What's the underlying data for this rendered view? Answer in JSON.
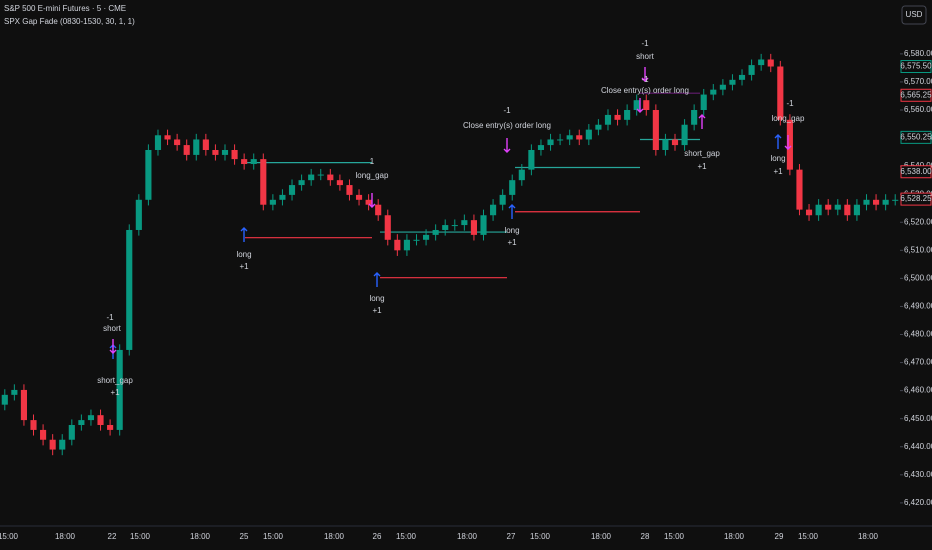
{
  "chart_data": {
    "type": "candlestick",
    "title": "S&P 500 E-mini Futures · 5 · CME",
    "subtitle": "SPX Gap Fade (0830-1530, 30, 1, 1)",
    "currency": "USD",
    "up_color": "#089981",
    "down_color": "#f23645",
    "open": [
      6455,
      6458.5,
      6460.25,
      6449.5,
      6446,
      6442.5,
      6439,
      6442.5,
      6447.75,
      6449.5,
      6451.25,
      6447.75,
      6446,
      6474.5,
      6517.25,
      6528,
      6545.75,
      6551,
      6549.5,
      6547.5,
      6544,
      6549.5,
      6545.75,
      6544,
      6545.75,
      6542.5,
      6540.75,
      6542.5,
      6526.25,
      6528,
      6529.75,
      6533.25,
      6535,
      6537,
      6537,
      6535,
      6533.25,
      6529.75,
      6528,
      6526.25,
      6522.5,
      6513.75,
      6510,
      6513.75,
      6513.75,
      6515.5,
      6517.25,
      6519,
      6519,
      6520.75,
      6515.5,
      6522.5,
      6526.25,
      6529.75,
      6535,
      6538.75,
      6545.75,
      6547.5,
      6549.5,
      6549.5,
      6551,
      6549.5,
      6553,
      6554.75,
      6558.25,
      6556.5,
      6560,
      6563.5,
      6560,
      6545.75,
      6549.5,
      6547.5,
      6554.75,
      6560,
      6565.5,
      6567.25,
      6569,
      6570.75,
      6572.5,
      6576,
      6578,
      6575.5,
      6556.5,
      6538.75,
      6524.5,
      6522.5,
      6526.25,
      6524.5,
      6526.25,
      6522.5,
      6526.25,
      6528,
      6526.25,
      6528
    ],
    "high": [
      6460.5,
      6462.25,
      6462.25,
      6451.5,
      6448,
      6444.5,
      6444.5,
      6449.75,
      6451.5,
      6453.25,
      6453.25,
      6449.75,
      6476.5,
      6519.25,
      6530,
      6547.75,
      6553,
      6553,
      6551.5,
      6549.5,
      6551.5,
      6551.5,
      6547.75,
      6547.75,
      6547.75,
      6544.5,
      6544.5,
      6544.5,
      6530,
      6531.75,
      6535.25,
      6537,
      6539,
      6539,
      6539,
      6537,
      6535.25,
      6531.75,
      6530,
      6528.25,
      6524.5,
      6515.75,
      6515.75,
      6515.75,
      6517.5,
      6519.25,
      6521,
      6521,
      6522.75,
      6522.75,
      6524.5,
      6528.25,
      6531.75,
      6537,
      6540.75,
      6547.75,
      6549.5,
      6551.5,
      6551.5,
      6553,
      6553,
      6555,
      6556.75,
      6560.25,
      6560.25,
      6562,
      6565.5,
      6565.5,
      6562,
      6551.5,
      6551.5,
      6556.75,
      6562,
      6567.5,
      6569.25,
      6571,
      6572.75,
      6574.5,
      6578,
      6580,
      6580,
      6577.5,
      6558.5,
      6540.75,
      6526.5,
      6528.25,
      6528.25,
      6528.25,
      6528.25,
      6528.25,
      6530,
      6530,
      6530,
      6530
    ],
    "low": [
      6453,
      6456.5,
      6447.5,
      6444,
      6440.5,
      6437,
      6437,
      6440.5,
      6445.75,
      6447.5,
      6445.75,
      6444,
      6444,
      6472.5,
      6515.25,
      6526,
      6543.75,
      6547.5,
      6545.5,
      6542,
      6542,
      6543.75,
      6542,
      6542,
      6540.5,
      6538.75,
      6538.75,
      6524.25,
      6524.25,
      6526,
      6527.75,
      6531.25,
      6533,
      6535,
      6533,
      6531.25,
      6527.75,
      6526,
      6524.25,
      6520.5,
      6511.75,
      6508,
      6508,
      6511.75,
      6511.75,
      6513.5,
      6515.25,
      6517,
      6517,
      6513.5,
      6513.5,
      6520.5,
      6524.25,
      6527.75,
      6533,
      6536.75,
      6543.75,
      6545.5,
      6547.5,
      6547.5,
      6547.5,
      6547.5,
      6551,
      6552.75,
      6554.5,
      6554.5,
      6558,
      6558,
      6543.75,
      6543.75,
      6545.5,
      6545.5,
      6552.75,
      6558,
      6563.5,
      6565.25,
      6567,
      6568.75,
      6570.5,
      6574,
      6573.5,
      6554.5,
      6536.75,
      6522.5,
      6520.5,
      6520.5,
      6522.5,
      6522.5,
      6520.5,
      6520.5,
      6524.25,
      6524.25,
      6524.25,
      6526
    ],
    "close": [
      6458.5,
      6460.25,
      6449.5,
      6446,
      6442.5,
      6439,
      6442.5,
      6447.75,
      6449.5,
      6451.25,
      6447.75,
      6446,
      6474.5,
      6517.25,
      6528,
      6545.75,
      6551,
      6549.5,
      6547.5,
      6544,
      6549.5,
      6545.75,
      6544,
      6545.75,
      6542.5,
      6540.75,
      6542.5,
      6526.25,
      6528,
      6529.75,
      6533.25,
      6535,
      6537,
      6537,
      6535,
      6533.25,
      6529.75,
      6528,
      6526.25,
      6522.5,
      6513.75,
      6510,
      6513.75,
      6513.75,
      6515.5,
      6517.25,
      6519,
      6519,
      6520.75,
      6515.5,
      6522.5,
      6526.25,
      6529.75,
      6535,
      6538.75,
      6545.75,
      6547.5,
      6549.5,
      6549.5,
      6551,
      6549.5,
      6553,
      6554.75,
      6558.25,
      6556.5,
      6560,
      6563.5,
      6560,
      6545.75,
      6549.5,
      6547.5,
      6554.75,
      6560,
      6565.5,
      6567.25,
      6569,
      6570.75,
      6572.5,
      6576,
      6578,
      6575.5,
      6556.5,
      6538.75,
      6524.5,
      6522.5,
      6526.25,
      6524.5,
      6526.25,
      6522.5,
      6526.25,
      6528,
      6526.25,
      6528,
      6528
    ],
    "xticks": [
      "15:00",
      "18:00",
      "22",
      "15:00",
      "18:00",
      "25",
      "15:00",
      "18:00",
      "26",
      "15:00",
      "18:00",
      "27",
      "15:00",
      "18:00",
      "28",
      "15:00",
      "18:00",
      "29",
      "15:00",
      "18:00"
    ],
    "ylim": [
      6413.9,
      6599.2
    ],
    "yticks": [
      {
        "value": 6420,
        "label": "6,420.00"
      },
      {
        "value": 6430,
        "label": "6,430.00"
      },
      {
        "value": 6440,
        "label": "6,440.00"
      },
      {
        "value": 6450,
        "label": "6,450.00"
      },
      {
        "value": 6460,
        "label": "6,460.00"
      },
      {
        "value": 6470,
        "label": "6,470.00"
      },
      {
        "value": 6480,
        "label": "6,480.00"
      },
      {
        "value": 6490,
        "label": "6,490.00"
      },
      {
        "value": 6500,
        "label": "6,500.00"
      },
      {
        "value": 6510,
        "label": "6,510.00"
      },
      {
        "value": 6520,
        "label": "6,520.00"
      },
      {
        "value": 6530,
        "label": "6,530.00"
      },
      {
        "value": 6540,
        "label": "6,540.00"
      },
      {
        "value": 6550,
        "label": "6,550.00"
      },
      {
        "value": 6560,
        "label": "6,560.00"
      },
      {
        "value": 6570,
        "label": "6,570.00"
      },
      {
        "value": 6580,
        "label": "6,580.00"
      }
    ],
    "price_tags": [
      {
        "value": 6575.5,
        "label": "6,575.50",
        "color": "#089981"
      },
      {
        "value": 6565.25,
        "label": "6,565.25",
        "color": "#f23645"
      },
      {
        "value": 6550.25,
        "label": "6,550.25",
        "color": "#089981"
      },
      {
        "value": 6538,
        "label": "6,538.00",
        "color": "#f23645"
      },
      {
        "value": 6528.25,
        "label": "6,528.25",
        "color": "#f23645"
      }
    ],
    "levels": [
      {
        "value": 6541.25,
        "color": "#26a69a"
      },
      {
        "value": 6514.5,
        "color": "#f23645"
      },
      {
        "value": 6516.5,
        "color": "#26a69a"
      },
      {
        "value": 6500.25,
        "color": "#f23645"
      },
      {
        "value": 6539.5,
        "color": "#26a69a"
      },
      {
        "value": 6523.75,
        "color": "#f23645"
      },
      {
        "value": 6566,
        "color": "#9c27b0"
      },
      {
        "value": 6549.5,
        "color": "#26a69a"
      }
    ],
    "annotations": [
      "-1",
      "short",
      "short_gap",
      "+1",
      "long",
      "+1",
      "1",
      "long_gap",
      "long",
      "+1",
      "-1",
      "Close entry(s) order long",
      "long",
      "+1",
      "-1",
      "short",
      "-1",
      "Close entry(s) order long",
      "short_gap",
      "+1",
      "-1",
      "long_gap",
      "long",
      "+1"
    ]
  }
}
